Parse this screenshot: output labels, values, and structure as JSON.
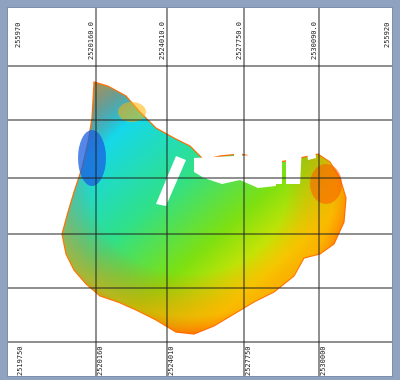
{
  "map": {
    "grid_x_labels_top": [
      "255970",
      "2520160.0",
      "2524010.0",
      "2527750.0",
      "2530090.0",
      "255920"
    ],
    "grid_x_labels_bottom": [
      "2519750",
      "2520160",
      "2524010",
      "2527750",
      "2530000"
    ],
    "palette": [
      "#1a6ee0",
      "#16d8e8",
      "#2fe08a",
      "#7ee010",
      "#f2e500",
      "#ffb000",
      "#ff5a00"
    ],
    "background": "#ffffff",
    "frame_color": "#8fa2bf",
    "grid_color": "#222222"
  }
}
